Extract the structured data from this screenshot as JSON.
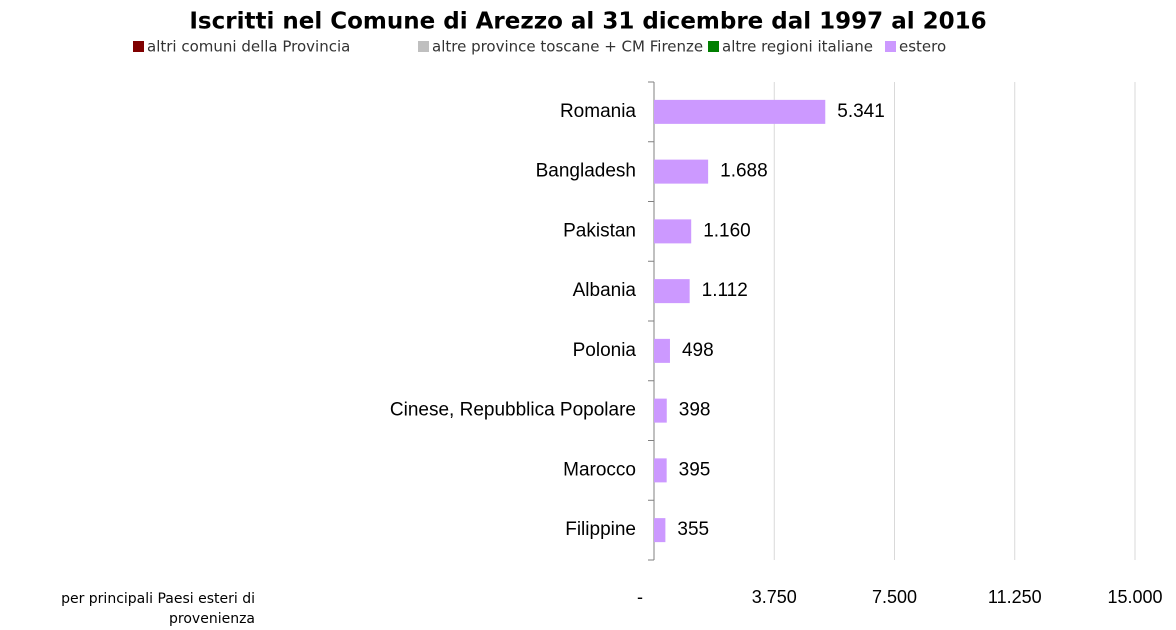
{
  "chart_data": {
    "type": "hbar",
    "title": "Iscritti nel Comune di Arezzo al 31 dicembre dal 1997 al 2016",
    "note_lines": [
      "per principali Paesi esteri di",
      "provenienza"
    ],
    "legend": [
      {
        "name": "altri comuni della Provincia",
        "color": "#7f0000"
      },
      {
        "name": "altre province toscane + CM Firenze",
        "color": "#bfbfbf"
      },
      {
        "name": "altre regioni italiane",
        "color": "#007f00"
      },
      {
        "name": "estero",
        "color": "#cc99ff"
      }
    ],
    "categories": [
      "Romania",
      "Bangladesh",
      "Pakistan",
      "Albania",
      "Polonia",
      "Cinese, Repubblica Popolare",
      "Marocco",
      "Filippine"
    ],
    "values": [
      5341,
      1688,
      1160,
      1112,
      498,
      398,
      395,
      355
    ],
    "value_labels": [
      "5.341",
      "1.688",
      "1.160",
      "1.112",
      "498",
      "398",
      "395",
      "355"
    ],
    "color": "#cc99ff",
    "xlim": [
      0,
      15000
    ],
    "xticks": [
      {
        "value": 0,
        "label": "-"
      },
      {
        "value": 3750,
        "label": "3.750"
      },
      {
        "value": 7500,
        "label": "7.500"
      },
      {
        "value": 11250,
        "label": "11.250"
      },
      {
        "value": 15000,
        "label": "15.000"
      }
    ],
    "grid": true
  }
}
